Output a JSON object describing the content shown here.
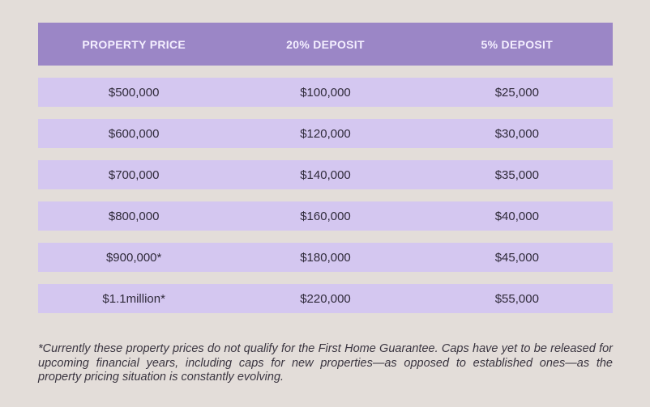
{
  "columns": [
    "PROPERTY PRICE",
    "20% DEPOSIT",
    "5% DEPOSIT"
  ],
  "rows": [
    [
      "$500,000",
      "$100,000",
      "$25,000"
    ],
    [
      "$600,000",
      "$120,000",
      "$30,000"
    ],
    [
      "$700,000",
      "$140,000",
      "$35,000"
    ],
    [
      "$800,000",
      "$160,000",
      "$40,000"
    ],
    [
      "$900,000*",
      "$180,000",
      "$45,000"
    ],
    [
      "$1.1million*",
      "$220,000",
      "$55,000"
    ]
  ],
  "footnote": "*Currently these property prices do not qualify for the First Home Guarantee. Caps have yet to be released for upcoming financial years, including caps for new properties—as opposed to established ones—as the property pricing situation is constantly evolving.",
  "colors": {
    "background": "#e3ddd9",
    "header": "#9b86c6",
    "row": "#d4c7f0"
  }
}
